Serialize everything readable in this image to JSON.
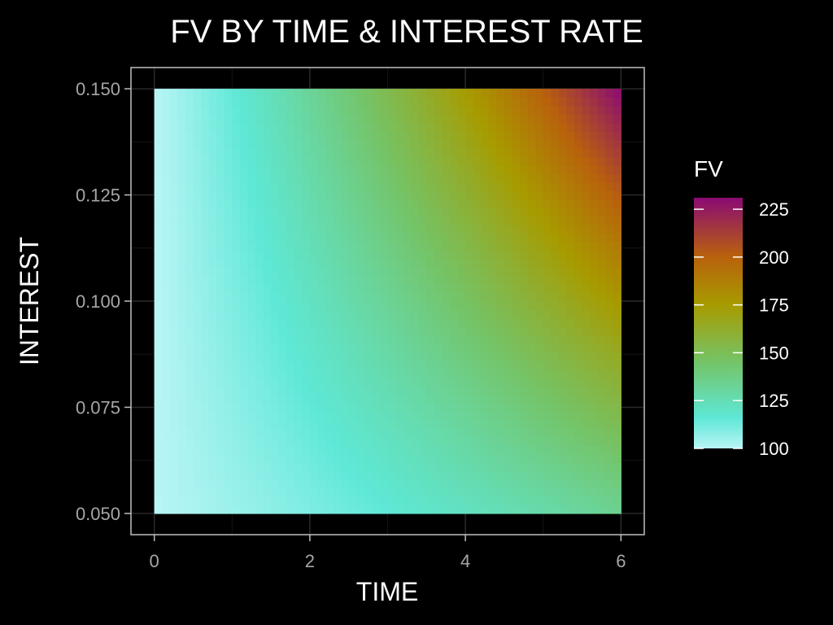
{
  "chart_data": {
    "type": "heatmap",
    "title": "FV BY TIME & INTEREST RATE",
    "xlabel": "TIME",
    "ylabel": "INTEREST",
    "x_ticks": [
      0,
      2,
      4,
      6
    ],
    "x_tick_labels": [
      "0",
      "2",
      "4",
      "6"
    ],
    "y_ticks": [
      0.05,
      0.075,
      0.1,
      0.125,
      0.15
    ],
    "y_tick_labels": [
      "0.050",
      "0.075",
      "0.100",
      "0.125",
      "0.150"
    ],
    "xlim": [
      -0.3,
      6.3
    ],
    "ylim": [
      0.045,
      0.155
    ],
    "x_range": [
      0,
      6
    ],
    "y_range": [
      0.05,
      0.15
    ],
    "value_expression": "100 * (1 + INTEREST) ^ TIME",
    "corner_values": [
      {
        "time": 0,
        "interest": 0.05,
        "fv": 100
      },
      {
        "time": 6,
        "interest": 0.05,
        "fv": 134
      },
      {
        "time": 0,
        "interest": 0.15,
        "fv": 100
      },
      {
        "time": 6,
        "interest": 0.15,
        "fv": 231
      }
    ],
    "legend": {
      "title": "FV",
      "position": "right",
      "ticks": [
        100,
        125,
        150,
        175,
        200,
        225
      ],
      "tick_labels": [
        "100",
        "125",
        "150",
        "175",
        "200",
        "225"
      ],
      "limits": [
        100,
        231
      ]
    },
    "colors": {
      "background": "#000000",
      "panel_border": "#bfbfbf",
      "grid_major": "#2a2a2a",
      "grid_minor": "#141414",
      "scale": [
        {
          "value": 100,
          "color": "#b9f5f6"
        },
        {
          "value": 116,
          "color": "#5ee8d6"
        },
        {
          "value": 145,
          "color": "#74c468"
        },
        {
          "value": 175,
          "color": "#a79b00"
        },
        {
          "value": 200,
          "color": "#b8620c"
        },
        {
          "value": 231,
          "color": "#8b0a74"
        }
      ]
    },
    "grid": true
  }
}
